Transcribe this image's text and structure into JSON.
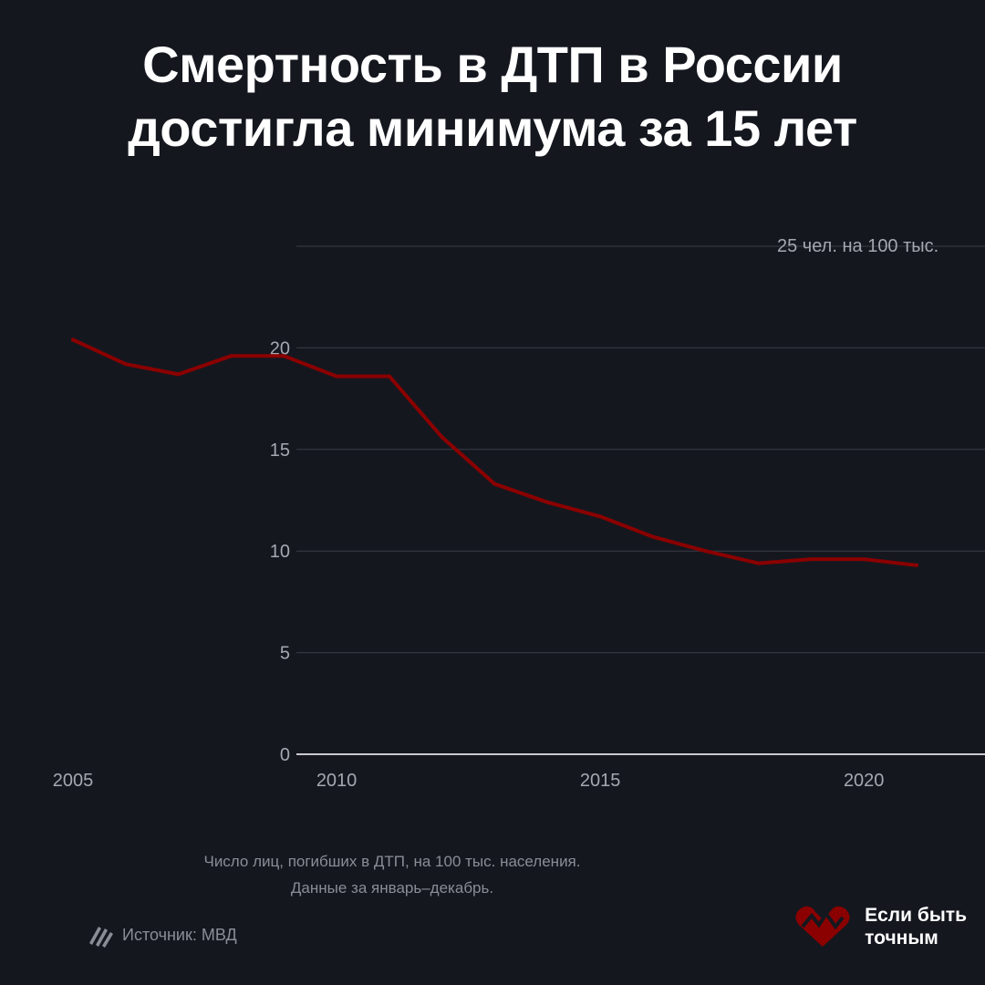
{
  "title": {
    "line1": "Смертность в ДТП в России",
    "line2": "достигла минимума за 15 лет"
  },
  "footnote": {
    "line1": "Число лиц, погибших в ДТП, на 100 тыс. населения.",
    "line2": "Данные за январь–декабрь."
  },
  "source": {
    "label": "Источник: МВД"
  },
  "logo": {
    "line1": "Если быть",
    "line2": "точным"
  },
  "colors": {
    "background": "#15171f",
    "line": "#8b0000",
    "grid": "#3a3d46",
    "text": "#a5a8b0"
  },
  "chart_data": {
    "type": "line",
    "title": "Смертность в ДТП в России достигла минимума за 15 лет",
    "xlabel": "",
    "ylabel": "",
    "x": [
      2005,
      2006,
      2007,
      2008,
      2009,
      2010,
      2011,
      2012,
      2013,
      2014,
      2015,
      2016,
      2017,
      2018,
      2019,
      2020,
      2021
    ],
    "series": [
      {
        "name": "",
        "values": [
          20.4,
          19.2,
          18.7,
          19.6,
          19.6,
          18.6,
          18.6,
          15.6,
          13.3,
          12.4,
          11.7,
          10.7,
          10.0,
          9.4,
          9.6,
          9.6,
          9.3
        ]
      }
    ],
    "xticks": [
      2005,
      2010,
      2015,
      2020
    ],
    "yticks": [
      0,
      5,
      10,
      15,
      20,
      25
    ],
    "unit_label": "25 чел. на 100 тыс.",
    "xlim": [
      2005,
      2021
    ],
    "ylim": [
      0,
      25
    ],
    "grid": true,
    "legend": "none"
  }
}
